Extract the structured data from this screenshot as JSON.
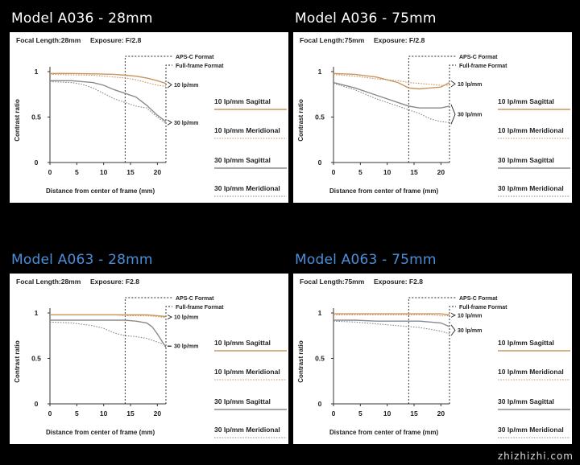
{
  "colors": {
    "titleTop": "#ffffff",
    "titleBottom": "#4a8fd9",
    "sagittal10": "#c9955f",
    "meridional10": "#c9955f",
    "sagittal30": "#8a8a8a",
    "meridional30": "#8a8a8a"
  },
  "watermark": "zhizhizhi.com",
  "chart_data": [
    {
      "panel_title": "Model A036 - 28mm",
      "focal_length": "Focal Length:28mm",
      "exposure": "Exposure: F/2.8",
      "type": "line",
      "xlabel": "Distance from center of frame (mm)",
      "ylabel": "Contrast ratio",
      "xticks": [
        "0",
        "5",
        "10",
        "15",
        "20"
      ],
      "yticks": [
        "1",
        "0.5",
        "0"
      ],
      "xlim": [
        0,
        21.6
      ],
      "ylim": [
        0,
        1
      ],
      "apsc_limit": 14.0,
      "annotations": [
        "APS-C Format",
        "Full-frame Format",
        "10 lp/mm",
        "30 lp/mm"
      ],
      "legend": [
        "10 lp/mm Sagittal",
        "10 lp/mm Meridional",
        "30 lp/mm Sagittal",
        "30 lp/mm Meridional"
      ],
      "series": [
        {
          "name": "10 lp/mm Sagittal",
          "style": "solid",
          "color": "#c9955f",
          "x": [
            0,
            4,
            8,
            12,
            14,
            16,
            18,
            20,
            21.6
          ],
          "y": [
            0.98,
            0.98,
            0.975,
            0.97,
            0.96,
            0.95,
            0.93,
            0.9,
            0.87
          ]
        },
        {
          "name": "10 lp/mm Meridional",
          "style": "dotted",
          "color": "#c9955f",
          "x": [
            0,
            4,
            8,
            12,
            14,
            16,
            18,
            20,
            21.6
          ],
          "y": [
            0.97,
            0.965,
            0.96,
            0.94,
            0.93,
            0.91,
            0.88,
            0.85,
            0.84
          ]
        },
        {
          "name": "30 lp/mm Sagittal",
          "style": "solid",
          "color": "#8a8a8a",
          "x": [
            0,
            4,
            8,
            10,
            12,
            14,
            16,
            18,
            20,
            21.6
          ],
          "y": [
            0.9,
            0.9,
            0.88,
            0.85,
            0.8,
            0.76,
            0.72,
            0.63,
            0.52,
            0.45
          ]
        },
        {
          "name": "30 lp/mm Meridional",
          "style": "dotted",
          "color": "#8a8a8a",
          "x": [
            0,
            4,
            6,
            8,
            10,
            12,
            14,
            16,
            18,
            20,
            21.6
          ],
          "y": [
            0.89,
            0.88,
            0.86,
            0.82,
            0.76,
            0.7,
            0.66,
            0.62,
            0.6,
            0.5,
            0.43
          ]
        }
      ]
    },
    {
      "panel_title": "Model A036 - 75mm",
      "focal_length": "Focal Length:75mm",
      "exposure": "Exposure: F/2.8",
      "type": "line",
      "xlabel": "Distance from center of frame (mm)",
      "ylabel": "Contrast ratio",
      "xticks": [
        "0",
        "5",
        "10",
        "15",
        "20"
      ],
      "yticks": [
        "1",
        "0.5",
        "0"
      ],
      "xlim": [
        0,
        21.6
      ],
      "ylim": [
        0,
        1
      ],
      "apsc_limit": 14.0,
      "annotations": [
        "APS-C Format",
        "Full-frame Format",
        "10 lp/mm",
        "30 lp/mm"
      ],
      "legend": [
        "10 lp/mm Sagittal",
        "10 lp/mm Meridional",
        "30 lp/mm Sagittal",
        "30 lp/mm Meridional"
      ],
      "series": [
        {
          "name": "10 lp/mm Sagittal",
          "style": "solid",
          "color": "#c9955f",
          "x": [
            0,
            4,
            8,
            12,
            14,
            16,
            18,
            20,
            21.6
          ],
          "y": [
            0.98,
            0.97,
            0.94,
            0.88,
            0.82,
            0.81,
            0.82,
            0.83,
            0.88
          ]
        },
        {
          "name": "10 lp/mm Meridional",
          "style": "dotted",
          "color": "#c9955f",
          "x": [
            0,
            4,
            8,
            12,
            14,
            16,
            18,
            20,
            21.6
          ],
          "y": [
            0.97,
            0.95,
            0.92,
            0.9,
            0.88,
            0.87,
            0.86,
            0.85,
            0.85
          ]
        },
        {
          "name": "30 lp/mm Sagittal",
          "style": "solid",
          "color": "#8a8a8a",
          "x": [
            0,
            4,
            8,
            12,
            14,
            16,
            18,
            20,
            21.6
          ],
          "y": [
            0.88,
            0.82,
            0.74,
            0.66,
            0.62,
            0.6,
            0.6,
            0.6,
            0.62
          ]
        },
        {
          "name": "30 lp/mm Meridional",
          "style": "dotted",
          "color": "#8a8a8a",
          "x": [
            0,
            4,
            8,
            12,
            14,
            16,
            18,
            20,
            21.6
          ],
          "y": [
            0.87,
            0.8,
            0.7,
            0.62,
            0.58,
            0.54,
            0.48,
            0.45,
            0.44
          ]
        }
      ]
    },
    {
      "panel_title": "Model A063 - 28mm",
      "focal_length": "Focal Length:28mm",
      "exposure": "Exposure: F2.8",
      "type": "line",
      "xlabel": "Distance from center of frame (mm)",
      "ylabel": "Contrast ratio",
      "xticks": [
        "0",
        "5",
        "10",
        "15",
        "20"
      ],
      "yticks": [
        "1",
        "0.5",
        "0"
      ],
      "xlim": [
        0,
        21.6
      ],
      "ylim": [
        0,
        1
      ],
      "apsc_limit": 14.0,
      "annotations": [
        "APS-C Format",
        "Full-frame Format",
        "10 lp/mm",
        "30 lp/mm"
      ],
      "legend": [
        "10 lp/mm Sagittal",
        "10 lp/mm Meridional",
        "30 lp/mm Sagittal",
        "30 lp/mm Meridional"
      ],
      "series": [
        {
          "name": "10 lp/mm Sagittal",
          "style": "solid",
          "color": "#c9955f",
          "x": [
            0,
            4,
            8,
            12,
            14,
            16,
            18,
            20,
            21.6
          ],
          "y": [
            0.98,
            0.98,
            0.98,
            0.98,
            0.98,
            0.98,
            0.98,
            0.97,
            0.96
          ]
        },
        {
          "name": "10 lp/mm Meridional",
          "style": "dotted",
          "color": "#c9955f",
          "x": [
            0,
            4,
            8,
            12,
            14,
            16,
            18,
            20,
            21.6
          ],
          "y": [
            0.98,
            0.98,
            0.98,
            0.98,
            0.97,
            0.97,
            0.97,
            0.96,
            0.95
          ]
        },
        {
          "name": "30 lp/mm Sagittal",
          "style": "solid",
          "color": "#8a8a8a",
          "x": [
            0,
            4,
            8,
            12,
            14,
            16,
            18,
            19,
            20,
            21.6
          ],
          "y": [
            0.92,
            0.92,
            0.92,
            0.92,
            0.92,
            0.91,
            0.89,
            0.85,
            0.77,
            0.62
          ]
        },
        {
          "name": "30 lp/mm Meridional",
          "style": "dotted",
          "color": "#8a8a8a",
          "x": [
            0,
            4,
            8,
            10,
            12,
            14,
            16,
            18,
            20,
            21.6
          ],
          "y": [
            0.9,
            0.89,
            0.86,
            0.83,
            0.78,
            0.75,
            0.74,
            0.72,
            0.68,
            0.65
          ]
        }
      ]
    },
    {
      "panel_title": "Model A063 - 75mm",
      "focal_length": "Focal Length:75mm",
      "exposure": "Exposure: F2.8",
      "type": "line",
      "xlabel": "Distance from center of frame (mm)",
      "ylabel": "Contrast ratio",
      "xticks": [
        "0",
        "5",
        "10",
        "15",
        "20"
      ],
      "yticks": [
        "1",
        "0.5",
        "0"
      ],
      "xlim": [
        0,
        21.6
      ],
      "ylim": [
        0,
        1
      ],
      "apsc_limit": 14.0,
      "annotations": [
        "APS-C Format",
        "Full-frame Format",
        "10 lp/mm",
        "30 lp/mm"
      ],
      "legend": [
        "10 lp/mm Sagittal",
        "10 lp/mm Meridional",
        "30 lp/mm Sagittal",
        "30 lp/mm Meridional"
      ],
      "series": [
        {
          "name": "10 lp/mm Sagittal",
          "style": "solid",
          "color": "#c9955f",
          "x": [
            0,
            4,
            8,
            12,
            14,
            16,
            18,
            20,
            21.6
          ],
          "y": [
            0.99,
            0.99,
            0.99,
            0.99,
            0.99,
            0.99,
            0.99,
            0.99,
            0.98
          ]
        },
        {
          "name": "10 lp/mm Meridional",
          "style": "dotted",
          "color": "#c9955f",
          "x": [
            0,
            4,
            8,
            12,
            14,
            16,
            18,
            20,
            21.6
          ],
          "y": [
            0.98,
            0.98,
            0.98,
            0.98,
            0.98,
            0.98,
            0.98,
            0.97,
            0.97
          ]
        },
        {
          "name": "30 lp/mm Sagittal",
          "style": "solid",
          "color": "#8a8a8a",
          "x": [
            0,
            4,
            8,
            12,
            14,
            16,
            18,
            20,
            21.6
          ],
          "y": [
            0.92,
            0.92,
            0.91,
            0.91,
            0.91,
            0.91,
            0.9,
            0.89,
            0.85
          ]
        },
        {
          "name": "30 lp/mm Meridional",
          "style": "dotted",
          "color": "#8a8a8a",
          "x": [
            0,
            4,
            8,
            12,
            14,
            16,
            18,
            20,
            21.6
          ],
          "y": [
            0.91,
            0.9,
            0.88,
            0.86,
            0.85,
            0.84,
            0.82,
            0.8,
            0.77
          ]
        }
      ]
    }
  ]
}
